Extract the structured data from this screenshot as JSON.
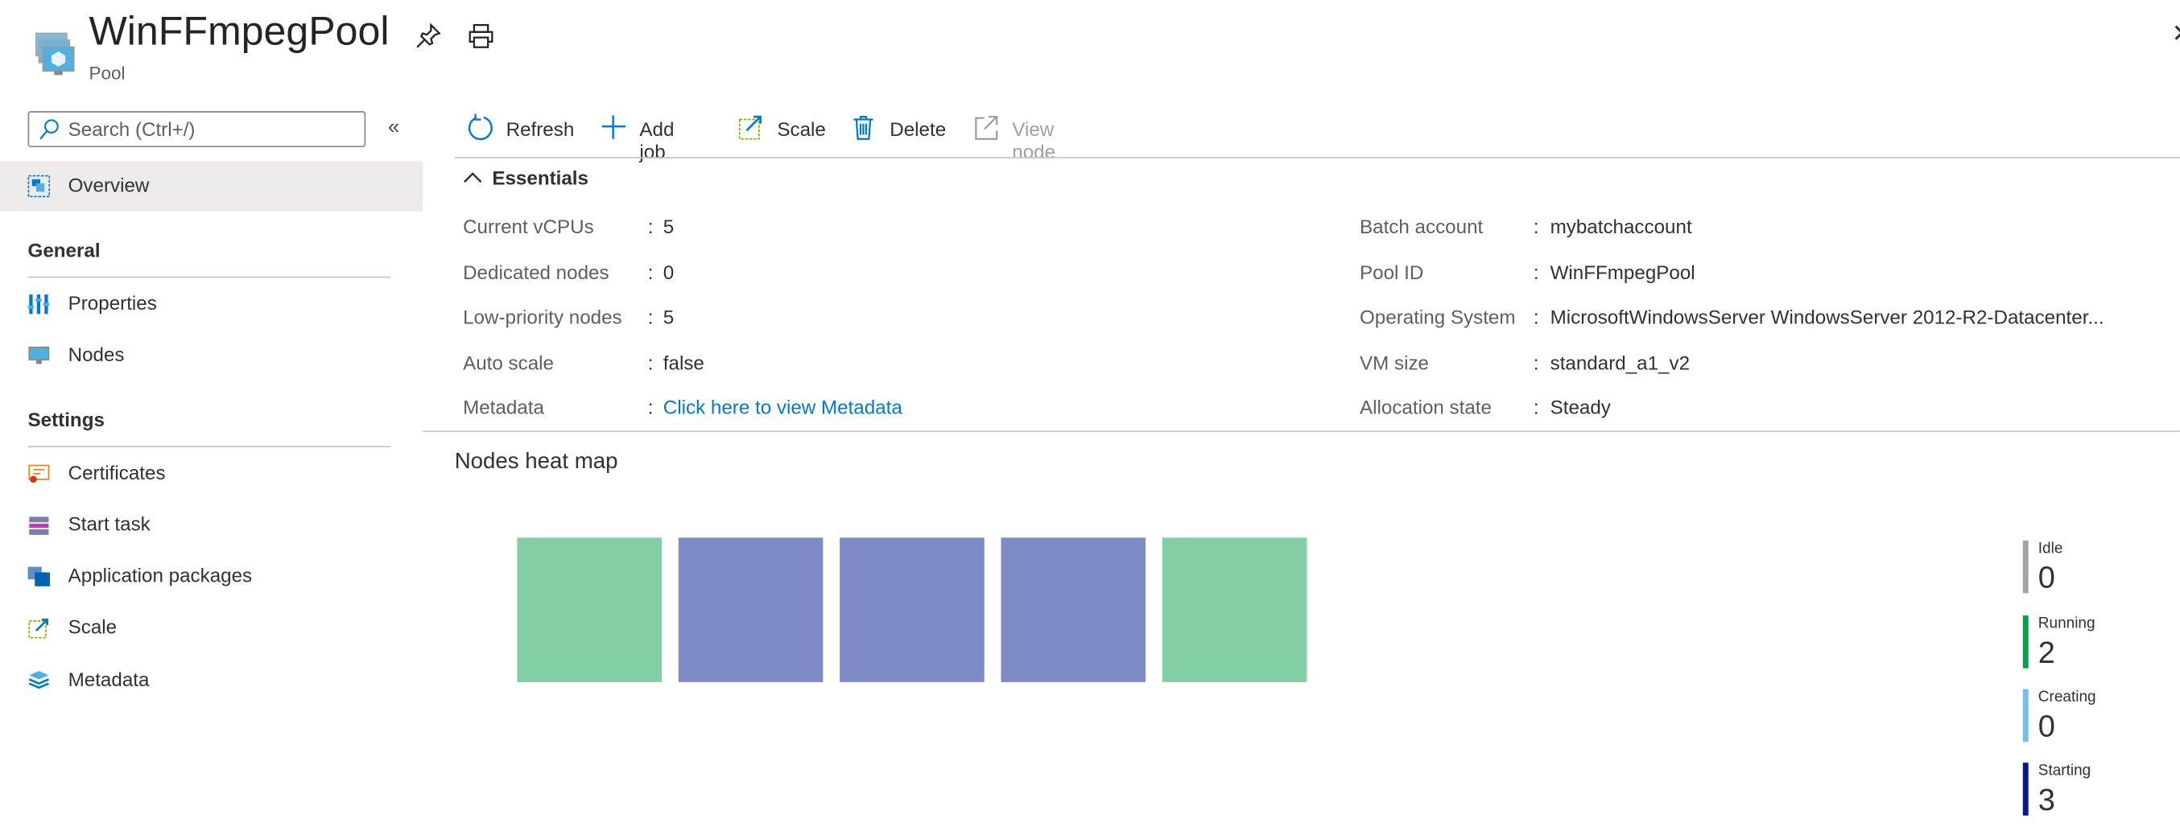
{
  "header": {
    "title": "WinFFmpegPool",
    "subtitle": "Pool",
    "icons": [
      "pool-icon",
      "pin-icon",
      "print-icon",
      "close-icon"
    ]
  },
  "sidebar": {
    "search_placeholder": "Search (Ctrl+/)",
    "collapse": "«",
    "overview": "Overview",
    "sections": [
      {
        "heading": "General",
        "items": [
          {
            "label": "Properties",
            "icon": "properties-icon"
          },
          {
            "label": "Nodes",
            "icon": "nodes-icon"
          }
        ]
      },
      {
        "heading": "Settings",
        "items": [
          {
            "label": "Certificates",
            "icon": "certificate-icon"
          },
          {
            "label": "Start task",
            "icon": "start-task-icon"
          },
          {
            "label": "Application packages",
            "icon": "application-packages-icon"
          },
          {
            "label": "Scale",
            "icon": "scale-icon"
          },
          {
            "label": "Metadata",
            "icon": "metadata-icon"
          }
        ]
      }
    ]
  },
  "toolbar": {
    "refresh": "Refresh",
    "add_job": "Add job",
    "scale": "Scale",
    "delete": "Delete",
    "view_node": "View node"
  },
  "essentials": {
    "title": "Essentials",
    "left": [
      {
        "label": "Current vCPUs",
        "value": "5"
      },
      {
        "label": "Dedicated nodes",
        "value": "0"
      },
      {
        "label": "Low-priority nodes",
        "value": "5"
      },
      {
        "label": "Auto scale",
        "value": "false"
      },
      {
        "label": "Metadata",
        "value": "Click here to view Metadata"
      }
    ],
    "right": [
      {
        "label": "Batch account",
        "value": "mybatchaccount"
      },
      {
        "label": "Pool ID",
        "value": "WinFFmpegPool"
      },
      {
        "label": "Operating System",
        "value": "MicrosoftWindowsServer WindowsServer 2012-R2-Datacenter..."
      },
      {
        "label": "VM size",
        "value": "standard_a1_v2"
      },
      {
        "label": "Allocation state",
        "value": "Steady"
      }
    ]
  },
  "heatmap": {
    "title": "Nodes heat map",
    "nodes": [
      "running",
      "starting",
      "starting",
      "starting",
      "running"
    ],
    "tile_colors": {
      "running": "#82cfa3",
      "starting": "#7f8bc7"
    },
    "legend": [
      {
        "label": "Idle",
        "count": "0",
        "color": "#a0a4a7"
      },
      {
        "label": "Running",
        "count": "2",
        "color": "#00a14b"
      },
      {
        "label": "Creating",
        "count": "0",
        "color": "#6cc3ea"
      },
      {
        "label": "Starting",
        "count": "3",
        "color": "#001a8c"
      }
    ]
  },
  "colors": {
    "accent": "#0078d4",
    "link": "#0078d4",
    "selected_bg": "#edebe9"
  }
}
